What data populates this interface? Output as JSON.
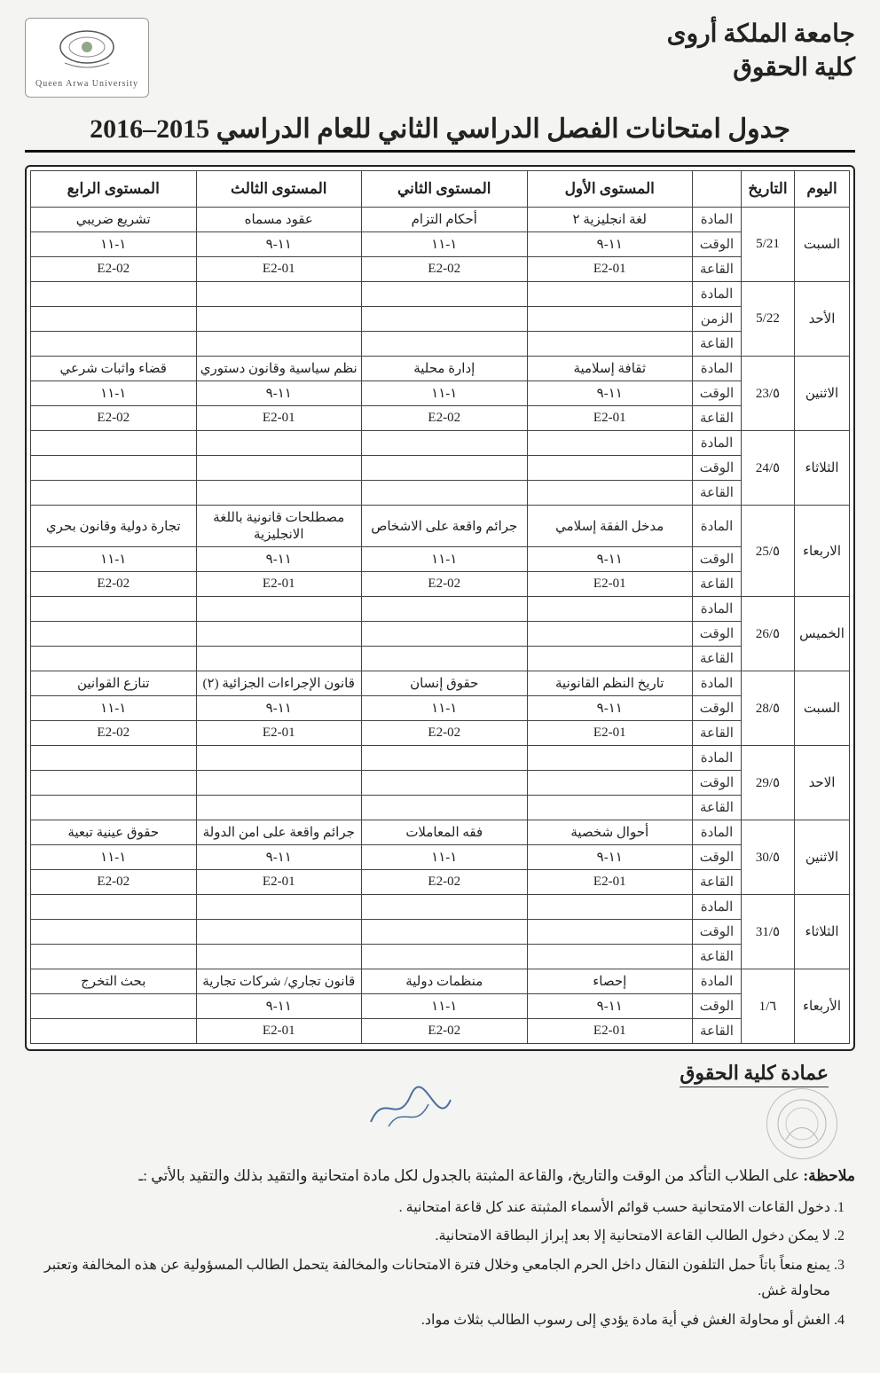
{
  "header": {
    "university": "جامعة الملكة أروى",
    "faculty": "كلية الحقوق",
    "logo_sub": "Queen Arwa University"
  },
  "page_title": "جدول امتحانات الفصل الدراسي الثاني للعام الدراسي 2015–2016",
  "columns": {
    "day": "اليوم",
    "date": "التاريخ",
    "label": "",
    "lvl1": "المستوى الأول",
    "lvl2": "المستوى الثاني",
    "lvl3": "المستوى الثالث",
    "lvl4": "المستوى الرابع"
  },
  "sublabels": {
    "subject": "المادة",
    "time": "الوقت",
    "hall": "القاعة",
    "time2": "الزمن"
  },
  "rows": [
    {
      "day": "السبت",
      "date": "5/21",
      "subject": {
        "l1": "لغة انجليزية ٢",
        "l2": "أحكام التزام",
        "l3": "عقود مسماه",
        "l4": "تشريع ضريبي"
      },
      "time": {
        "l1": "١١-٩",
        "l2": "١-١١",
        "l3": "١١-٩",
        "l4": "١-١١"
      },
      "hall": {
        "l1": "E2-01",
        "l2": "E2-02",
        "l3": "E2-01",
        "l4": "E2-02"
      }
    },
    {
      "day": "الأحد",
      "date": "5/22",
      "time_label_override": true,
      "subject": {
        "l1": "",
        "l2": "",
        "l3": "",
        "l4": ""
      },
      "time": {
        "l1": "",
        "l2": "",
        "l3": "",
        "l4": ""
      },
      "hall": {
        "l1": "",
        "l2": "",
        "l3": "",
        "l4": ""
      }
    },
    {
      "day": "الاثنين",
      "date": "٥/23",
      "subject": {
        "l1": "ثقافة إسلامية",
        "l2": "إدارة محلية",
        "l3": "نظم سياسية وقانون دستوري",
        "l4": "قضاء واثبات شرعي"
      },
      "time": {
        "l1": "١١-٩",
        "l2": "١-١١",
        "l3": "١١-٩",
        "l4": "١-١١"
      },
      "hall": {
        "l1": "E2-01",
        "l2": "E2-02",
        "l3": "E2-01",
        "l4": "E2-02"
      }
    },
    {
      "day": "الثلاثاء",
      "date": "٥/24",
      "subject": {
        "l1": "",
        "l2": "",
        "l3": "",
        "l4": ""
      },
      "time": {
        "l1": "",
        "l2": "",
        "l3": "",
        "l4": ""
      },
      "hall": {
        "l1": "",
        "l2": "",
        "l3": "",
        "l4": ""
      }
    },
    {
      "day": "الاربعاء",
      "date": "٥/25",
      "subject": {
        "l1": "مدخل الفقة إسلامي",
        "l2": "جرائم واقعة على الاشخاص",
        "l3": "مصطلحات قانونية باللغة الانجليزية",
        "l4": "تجارة دولية وقانون بحري"
      },
      "time": {
        "l1": "١١-٩",
        "l2": "١-١١",
        "l3": "١١-٩",
        "l4": "١-١١"
      },
      "hall": {
        "l1": "E2-01",
        "l2": "E2-02",
        "l3": "E2-01",
        "l4": "E2-02"
      }
    },
    {
      "day": "الخميس",
      "date": "٥/26",
      "subject": {
        "l1": "",
        "l2": "",
        "l3": "",
        "l4": ""
      },
      "time": {
        "l1": "",
        "l2": "",
        "l3": "",
        "l4": ""
      },
      "hall": {
        "l1": "",
        "l2": "",
        "l3": "",
        "l4": ""
      }
    },
    {
      "day": "السبت",
      "date": "٥/28",
      "subject": {
        "l1": "تاريخ النظم القانونية",
        "l2": "حقوق إنسان",
        "l3": "قانون الإجراءات الجزائية (٢)",
        "l4": "تنازع القوانين"
      },
      "time": {
        "l1": "١١-٩",
        "l2": "١-١١",
        "l3": "١١-٩",
        "l4": "١-١١"
      },
      "hall": {
        "l1": "E2-01",
        "l2": "E2-02",
        "l3": "E2-01",
        "l4": "E2-02"
      }
    },
    {
      "day": "الاحد",
      "date": "٥/29",
      "subject": {
        "l1": "",
        "l2": "",
        "l3": "",
        "l4": ""
      },
      "time": {
        "l1": "",
        "l2": "",
        "l3": "",
        "l4": ""
      },
      "hall": {
        "l1": "",
        "l2": "",
        "l3": "",
        "l4": ""
      }
    },
    {
      "day": "الاثنين",
      "date": "٥/30",
      "subject": {
        "l1": "أحوال شخصية",
        "l2": "فقه المعاملات",
        "l3": "جرائم واقعة على امن الدولة",
        "l4": "حقوق عينية تبعية"
      },
      "time": {
        "l1": "١١-٩",
        "l2": "١-١١",
        "l3": "١١-٩",
        "l4": "١-١١"
      },
      "hall": {
        "l1": "E2-01",
        "l2": "E2-02",
        "l3": "E2-01",
        "l4": "E2-02"
      }
    },
    {
      "day": "الثلاثاء",
      "date": "٥/31",
      "subject": {
        "l1": "",
        "l2": "",
        "l3": "",
        "l4": ""
      },
      "time": {
        "l1": "",
        "l2": "",
        "l3": "",
        "l4": ""
      },
      "hall": {
        "l1": "",
        "l2": "",
        "l3": "",
        "l4": ""
      }
    },
    {
      "day": "الأربعاء",
      "date": "٦/1",
      "subject": {
        "l1": "إحصاء",
        "l2": "منظمات دولية",
        "l3": "قانون تجاري/ شركات تجارية",
        "l4": "بحث التخرج"
      },
      "time": {
        "l1": "١١-٩",
        "l2": "١-١١",
        "l3": "١١-٩",
        "l4": ""
      },
      "hall": {
        "l1": "E2-01",
        "l2": "E2-02",
        "l3": "E2-01",
        "l4": ""
      }
    }
  ],
  "signature": {
    "dean": "عمادة كلية الحقوق"
  },
  "notes": {
    "lead": "ملاحظة:",
    "intro": "على الطلاب التأكد من الوقت والتاريخ، والقاعة المثبتة بالجدول لكل مادة امتحانية والتقيد بذلك والتقيد بالأتي :ـ",
    "items": [
      "دخول القاعات الامتحانية حسب قوائم الأسماء المثبتة عند كل قاعة امتحانية .",
      "لا يمكن دخول الطالب القاعة الامتحانية إلا بعد إبراز البطاقة الامتحانية.",
      "يمنع منعاً باتاً حمل التلفون النقال داخل الحرم الجامعي وخلال فترة الامتحانات والمخالفة يتحمل الطالب المسؤولية عن هذه المخالفة وتعتبر محاولة غش.",
      "الغش أو محاولة الغش في أية مادة يؤدي إلى رسوب الطالب بثلاث مواد."
    ]
  },
  "style": {
    "page_bg": "#f4f4f2",
    "border_color": "#222222",
    "text_color": "#222222",
    "title_fontsize": 30,
    "header_fontsize": 28,
    "cell_fontsize": 15,
    "th_fontsize": 17,
    "notes_fontsize": 17
  }
}
